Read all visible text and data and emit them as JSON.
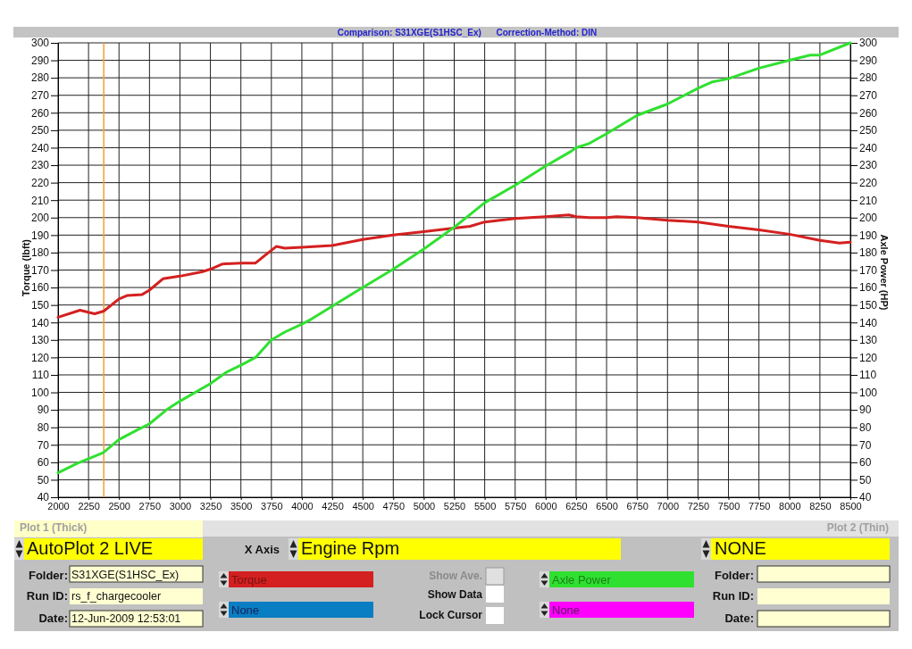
{
  "chart_data": {
    "type": "line",
    "subtitle": "Comparison: S31XGE(S1HSC_Ex)      Correction-Method: DIN",
    "xlabel": "Engine Rpm",
    "ylabel": "Torque (lbft)",
    "y2label": "Axle Power (HP)",
    "xlim": [
      2000,
      8500
    ],
    "xticks": [
      2000,
      2250,
      2500,
      2750,
      3000,
      3250,
      3500,
      3750,
      4000,
      4250,
      4500,
      4750,
      5000,
      5250,
      5500,
      5750,
      6000,
      6250,
      6500,
      6750,
      7000,
      7250,
      7500,
      7750,
      8000,
      8250,
      8500
    ],
    "ylim": [
      40,
      300
    ],
    "yticks": [
      40,
      50,
      60,
      70,
      80,
      90,
      100,
      110,
      120,
      130,
      140,
      150,
      160,
      170,
      180,
      190,
      200,
      210,
      220,
      230,
      240,
      250,
      260,
      270,
      280,
      290,
      300
    ],
    "y2lim": [
      40,
      300
    ],
    "y2ticks": [
      40,
      50,
      60,
      70,
      80,
      90,
      100,
      110,
      120,
      130,
      140,
      150,
      160,
      170,
      180,
      190,
      200,
      210,
      220,
      230,
      240,
      250,
      260,
      270,
      280,
      290,
      300
    ],
    "grid": true,
    "legend": "bottom",
    "series": [
      {
        "name": "Torque",
        "color": "#d42020",
        "x": [
          2000,
          2180,
          2300,
          2375,
          2500,
          2570,
          2690,
          2750,
          2860,
          3000,
          3180,
          3250,
          3350,
          3500,
          3620,
          3690,
          3790,
          3860,
          4000,
          4250,
          4500,
          4750,
          5000,
          5250,
          5380,
          5500,
          5750,
          6000,
          6190,
          6250,
          6360,
          6500,
          6580,
          6750,
          7000,
          7250,
          7500,
          7750,
          8000,
          8250,
          8410,
          8500
        ],
        "values": [
          143,
          147,
          145,
          146.5,
          153.5,
          155.5,
          156,
          158.5,
          165,
          166.5,
          169,
          170.5,
          173.5,
          174,
          174,
          178,
          183.5,
          182.5,
          183,
          184,
          187.5,
          190,
          192,
          194,
          195,
          197.5,
          199.5,
          200.5,
          201.5,
          200.5,
          200,
          200,
          200.5,
          200,
          198.5,
          197.5,
          195,
          193,
          190.5,
          187,
          185.5,
          186
        ]
      },
      {
        "name": "Axle Power",
        "color": "#30e030",
        "axis": "y2",
        "x": [
          2000,
          2160,
          2250,
          2370,
          2500,
          2650,
          2750,
          2890,
          3000,
          3250,
          3380,
          3500,
          3620,
          3750,
          3860,
          4000,
          4080,
          4300,
          4500,
          4750,
          5000,
          5250,
          5500,
          5750,
          6000,
          6210,
          6250,
          6360,
          6500,
          6750,
          7000,
          7250,
          7360,
          7500,
          7750,
          8000,
          8170,
          8250,
          8500
        ],
        "values": [
          54,
          59.5,
          62,
          65.5,
          73,
          78.5,
          82,
          90,
          95,
          105,
          111.5,
          115.5,
          120,
          130,
          134.5,
          139,
          142,
          151.5,
          160,
          170.5,
          182,
          194.5,
          208.5,
          218.5,
          229.5,
          238,
          240,
          242.5,
          248,
          258.5,
          265,
          274,
          277.5,
          279.5,
          285.5,
          290,
          293,
          293,
          300
        ]
      }
    ],
    "ref_lines": [
      {
        "axis": "x",
        "value": 2375,
        "color": "#f0a030"
      }
    ],
    "annotations": [
      "Plot 1 (Thick)",
      "AutoPlot 2 LIVE",
      "X Axis",
      "NONE",
      "Plot 2 (Thin)",
      "Folder:",
      "S31XGE(S1HSC_Ex)",
      "Run ID:",
      "rs_f_chargecooler",
      "Date:",
      "12-Jun-2009 12:53:01",
      "Show Ave.",
      "Show Data",
      "Lock Cursor",
      "None",
      "None",
      "Folder:",
      "Run ID:",
      "Date:"
    ]
  }
}
